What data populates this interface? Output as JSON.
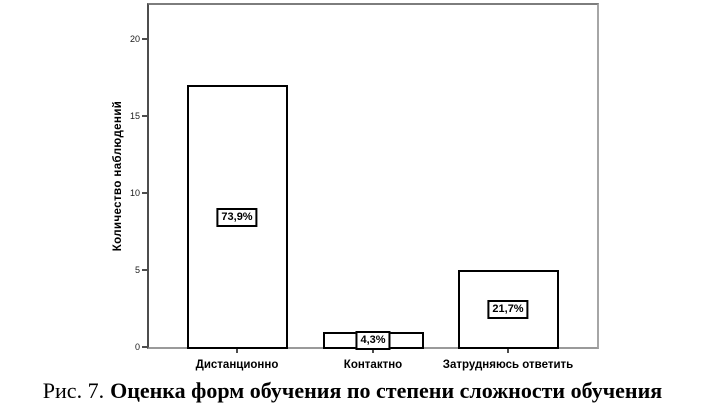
{
  "figure": {
    "caption_prefix": "Рис. 7.",
    "caption_bold": "Оценка форм обучения по степени сложности обучения"
  },
  "chart_data": {
    "type": "bar",
    "title": "",
    "xlabel": "",
    "ylabel": "Количество наблюдений",
    "categories": [
      "Дистанционно",
      "Контактно",
      "Затрудняюсь ответить"
    ],
    "values": [
      17,
      1,
      5
    ],
    "bar_labels": [
      "73,9%",
      "4,3%",
      "21,7%"
    ],
    "yticks": [
      0,
      5,
      10,
      15,
      20
    ],
    "ylim": [
      0,
      22.2
    ],
    "grid": false,
    "legend": false,
    "colors": {
      "bar_fill": "#ffffff",
      "bar_border": "#000000",
      "axis": "#4d4d4d",
      "frame": "#9a9a9a",
      "text": "#000000"
    }
  }
}
